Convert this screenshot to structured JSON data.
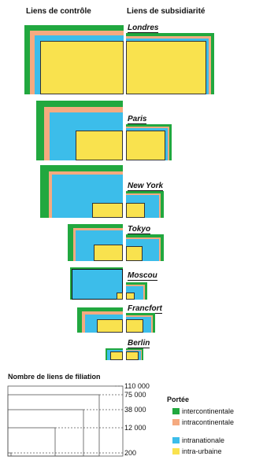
{
  "headers": {
    "control": "Liens de contrôle",
    "subsidiarity": "Liens de subsidiarité"
  },
  "colors": {
    "intercontinentale": "#21a83f",
    "intracontinentale": "#f5aa80",
    "intranationale": "#3cbdea",
    "intra_urbaine": "#f9e24e"
  },
  "cities": [
    {
      "name": "Londres"
    },
    {
      "name": "Paris"
    },
    {
      "name": "New York"
    },
    {
      "name": "Tokyo"
    },
    {
      "name": "Moscou"
    },
    {
      "name": "Francfort"
    },
    {
      "name": "Berlin"
    }
  ],
  "legend": {
    "title": "Nombre de liens de filiation",
    "ticks": [
      "110 000",
      "75 000",
      "38 000",
      "12 000",
      "200"
    ],
    "portee_title": "Portée",
    "portee_items": [
      {
        "label": "intercontinentale",
        "color": "#21a83f"
      },
      {
        "label": "intracontinentale",
        "color": "#f5aa80"
      },
      {
        "label": "intranationale",
        "color": "#3cbdea"
      },
      {
        "label": "intra-urbaine",
        "color": "#f9e24e"
      }
    ]
  }
}
